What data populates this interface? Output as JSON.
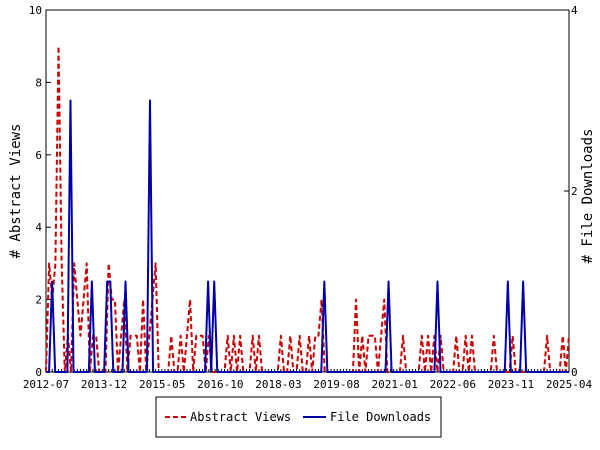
{
  "chart_data": {
    "type": "line",
    "x_axis": {
      "tick_labels": [
        "2012-07",
        "2013-12",
        "2015-05",
        "2016-10",
        "2018-03",
        "2019-08",
        "2021-01",
        "2022-06",
        "2023-11",
        "2025-04"
      ],
      "start": "2012-07",
      "end": "2025-04"
    },
    "y_left": {
      "label": "# Abstract Views",
      "ylim": [
        0,
        10
      ],
      "ticks": [
        "0",
        "2",
        "4",
        "6",
        "8",
        "10"
      ]
    },
    "y_right": {
      "label": "# File Downloads",
      "ylim": [
        0,
        4
      ],
      "ticks": [
        "0",
        "2",
        "4"
      ]
    },
    "grid": false,
    "legend": {
      "position": "bottom-center",
      "entries": [
        "Abstract Views",
        "File Downloads"
      ]
    },
    "series": [
      {
        "name": "Abstract Views",
        "axis": "left",
        "color": "#cc0000",
        "style": "dashed",
        "values": [
          0,
          3,
          2,
          3,
          9,
          3,
          0,
          1,
          0,
          3,
          2,
          1,
          2,
          3,
          0,
          1,
          1,
          0,
          0,
          0,
          3,
          2,
          2,
          0,
          1,
          2,
          0,
          1,
          1,
          1,
          0,
          2,
          0,
          1,
          2,
          3,
          0,
          0,
          0,
          0,
          1,
          0,
          0,
          1,
          0,
          1,
          2,
          0,
          1,
          1,
          1,
          0,
          1,
          0,
          0,
          0,
          0,
          0,
          1,
          0,
          1,
          0,
          1,
          0,
          0,
          0,
          1,
          0,
          1,
          0,
          0,
          0,
          0,
          0,
          0,
          1,
          0,
          0,
          1,
          0,
          0,
          1,
          0,
          0,
          1,
          0,
          1,
          1,
          2,
          0,
          0,
          0,
          0,
          0,
          0,
          0,
          0,
          0,
          0,
          2,
          0,
          1,
          0,
          1,
          1,
          1,
          0,
          1,
          2,
          0,
          0,
          0,
          0,
          0,
          1,
          0,
          0,
          0,
          0,
          0,
          1,
          0,
          1,
          0,
          1,
          0,
          1,
          0,
          0,
          0,
          0,
          1,
          0,
          0,
          1,
          0,
          1,
          0,
          0,
          0,
          0,
          0,
          0,
          1,
          0,
          0,
          0,
          0,
          0,
          1,
          0,
          0,
          0,
          0,
          0,
          0,
          0,
          0,
          0,
          0,
          1,
          0,
          0,
          0,
          0,
          1,
          0,
          1
        ]
      },
      {
        "name": "File Downloads",
        "axis": "right",
        "color": "#0000aa",
        "style": "solid",
        "values": [
          0,
          0,
          1,
          0,
          0,
          0,
          0,
          0,
          3,
          0,
          0,
          0,
          0,
          0,
          0,
          1,
          0,
          0,
          0,
          0,
          1,
          1,
          0,
          0,
          0,
          0,
          1,
          0,
          0,
          0,
          0,
          0,
          0,
          0,
          3,
          0,
          0,
          0,
          0,
          0,
          0,
          0,
          0,
          0,
          0,
          0,
          0,
          0,
          0,
          0,
          0,
          0,
          0,
          1,
          0,
          1,
          0,
          0,
          0,
          0,
          0,
          0,
          0,
          0,
          0,
          0,
          0,
          0,
          0,
          0,
          0,
          0,
          0,
          0,
          0,
          0,
          0,
          0,
          0,
          0,
          0,
          0,
          0,
          0,
          0,
          0,
          0,
          0,
          0,
          0,
          0,
          1,
          0,
          0,
          0,
          0,
          0,
          0,
          0,
          0,
          0,
          0,
          0,
          0,
          0,
          0,
          0,
          0,
          0,
          0,
          0,
          0,
          1,
          0,
          0,
          0,
          0,
          0,
          0,
          0,
          0,
          0,
          0,
          0,
          0,
          0,
          0,
          0,
          1,
          0,
          0,
          0,
          0,
          0,
          0,
          0,
          0,
          0,
          0,
          0,
          0,
          0,
          0,
          0,
          0,
          0,
          0,
          0,
          0,
          0,
          0,
          1,
          0,
          0,
          0,
          0,
          1,
          0,
          0,
          0,
          0,
          0,
          0,
          0,
          0,
          0,
          0,
          0,
          0,
          0,
          0,
          0
        ]
      }
    ]
  },
  "colors": {
    "views": "#cc0000",
    "downloads": "#0000aa"
  }
}
